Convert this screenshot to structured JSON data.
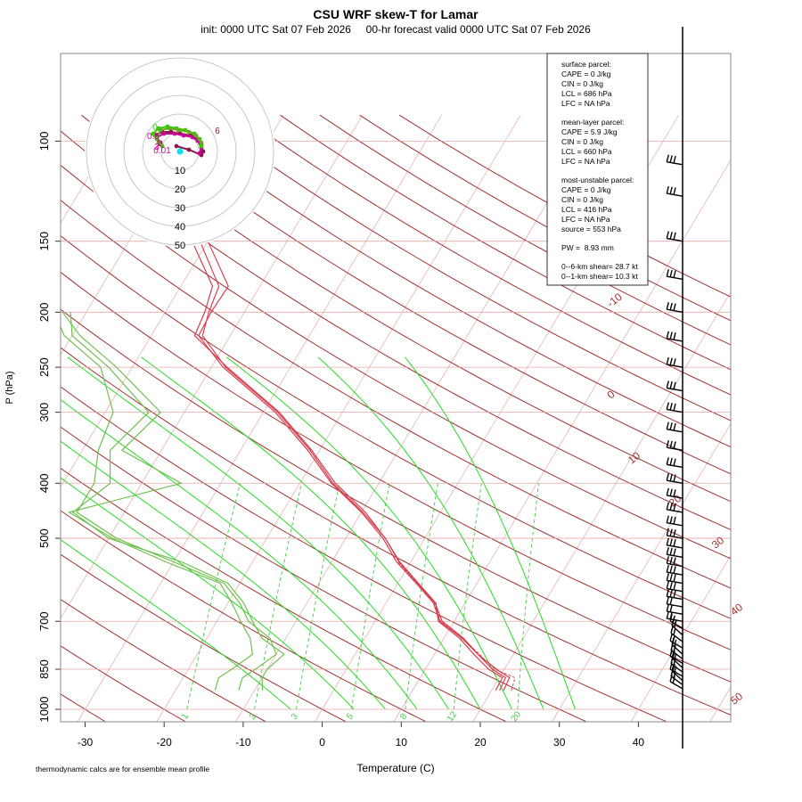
{
  "chart_data": {
    "type": "skew-t",
    "title": "CSU WRF skew-T for Lamar",
    "subtitle": "init: 0000 UTC Sat 07 Feb 2026     00-hr forecast valid 0000 UTC Sat 07 Feb 2026",
    "xlabel": "Temperature (C)",
    "ylabel": "P (hPa)",
    "footnote": "thermodynamic calcs are for ensemble mean profile",
    "x_ticks": [
      -30,
      -20,
      -10,
      0,
      10,
      20,
      30,
      40
    ],
    "p_ticks": [
      100,
      150,
      200,
      250,
      300,
      400,
      500,
      700,
      850,
      1000
    ],
    "isotherm_labels": [
      "-10",
      "0",
      "10",
      "20",
      "30",
      "40",
      "50"
    ],
    "mixing_ratio_labels": [
      "1",
      "2",
      "3",
      "5",
      "8",
      "12",
      "20"
    ],
    "hodograph_rings": [
      "10",
      "20",
      "30",
      "40",
      "50"
    ],
    "hodograph_markers": [
      "0",
      "0.5",
      "1",
      "3",
      "6",
      "0.01"
    ],
    "temperature_members": [
      {
        "points": [
          [
            926,
            21.0
          ],
          [
            880,
            20.8
          ],
          [
            850,
            18.5
          ],
          [
            800,
            15.5
          ],
          [
            750,
            12.5
          ],
          [
            700,
            8.5
          ],
          [
            650,
            6.2
          ],
          [
            600,
            2.5
          ],
          [
            550,
            -1.5
          ],
          [
            500,
            -5.0
          ],
          [
            450,
            -9.5
          ],
          [
            400,
            -15.5
          ],
          [
            350,
            -21.0
          ],
          [
            300,
            -28.0
          ],
          [
            250,
            -38.0
          ],
          [
            220,
            -44.5
          ],
          [
            200,
            -45.0
          ],
          [
            180,
            -46.0
          ],
          [
            150,
            -52.0
          ],
          [
            120,
            -54.0
          ],
          [
            110,
            -58.0
          ]
        ]
      },
      {
        "points": [
          [
            926,
            21.5
          ],
          [
            880,
            21.3
          ],
          [
            850,
            19.0
          ],
          [
            800,
            15.5
          ],
          [
            750,
            12.3
          ],
          [
            700,
            8.2
          ],
          [
            650,
            6.0
          ],
          [
            600,
            2.3
          ],
          [
            550,
            -1.8
          ],
          [
            500,
            -5.3
          ],
          [
            450,
            -10.0
          ],
          [
            400,
            -16.0
          ],
          [
            350,
            -21.5
          ],
          [
            300,
            -28.5
          ],
          [
            250,
            -38.5
          ],
          [
            220,
            -44.0
          ],
          [
            200,
            -44.2
          ],
          [
            180,
            -44.0
          ],
          [
            150,
            -50.0
          ],
          [
            120,
            -53.5
          ],
          [
            110,
            -58.0
          ]
        ]
      },
      {
        "points": [
          [
            926,
            20.5
          ],
          [
            880,
            20.4
          ],
          [
            850,
            18.0
          ],
          [
            800,
            15.0
          ],
          [
            750,
            12.0
          ],
          [
            700,
            8.0
          ],
          [
            650,
            6.3
          ],
          [
            600,
            2.6
          ],
          [
            550,
            -1.4
          ],
          [
            500,
            -5.0
          ],
          [
            450,
            -9.8
          ],
          [
            400,
            -15.8
          ],
          [
            350,
            -21.2
          ],
          [
            300,
            -28.2
          ],
          [
            250,
            -38.2
          ],
          [
            220,
            -43.5
          ],
          [
            200,
            -44.5
          ],
          [
            180,
            -45.2
          ],
          [
            150,
            -51.0
          ],
          [
            120,
            -54.2
          ],
          [
            110,
            -58.0
          ]
        ]
      }
    ],
    "temperature_mean": {
      "points": [
        [
          926,
          22.5
        ],
        [
          880,
          22.0
        ],
        [
          850,
          18.8
        ],
        [
          800,
          15.7
        ],
        [
          750,
          12.4
        ],
        [
          700,
          8.3
        ],
        [
          650,
          6.1
        ],
        [
          600,
          2.4
        ],
        [
          550,
          -1.6
        ]
      ]
    },
    "dewpoint_members": [
      {
        "points": [
          [
            926,
            -12.0
          ],
          [
            880,
            -12.5
          ],
          [
            850,
            -11.5
          ],
          [
            800,
            -10.0
          ],
          [
            750,
            -12.0
          ],
          [
            700,
            -16.0
          ],
          [
            650,
            -18.5
          ],
          [
            600,
            -22.0
          ],
          [
            550,
            -30.0
          ],
          [
            500,
            -39.0
          ],
          [
            450,
            -46.0
          ],
          [
            400,
            -46.0
          ],
          [
            350,
            -48.0
          ],
          [
            300,
            -49.0
          ],
          [
            250,
            -54.0
          ],
          [
            220,
            -61.0
          ],
          [
            200,
            -64.0
          ]
        ]
      },
      {
        "points": [
          [
            926,
            -15.0
          ],
          [
            880,
            -15.5
          ],
          [
            850,
            -14.5
          ],
          [
            800,
            -13.0
          ],
          [
            750,
            -14.5
          ],
          [
            700,
            -17.0
          ],
          [
            650,
            -19.5
          ],
          [
            600,
            -22.5
          ],
          [
            550,
            -31.0
          ],
          [
            500,
            -39.5
          ],
          [
            450,
            -47.0
          ],
          [
            400,
            -35.0
          ],
          [
            350,
            -45.0
          ],
          [
            300,
            -43.0
          ],
          [
            250,
            -52.0
          ],
          [
            220,
            -59.0
          ],
          [
            200,
            -63.0
          ]
        ]
      },
      {
        "points": [
          [
            926,
            -9.0
          ],
          [
            880,
            -10.0
          ],
          [
            850,
            -10.0
          ],
          [
            800,
            -9.0
          ],
          [
            750,
            -13.0
          ],
          [
            700,
            -15.5
          ],
          [
            650,
            -18.0
          ],
          [
            600,
            -21.5
          ],
          [
            550,
            -29.0
          ],
          [
            500,
            -40.0
          ],
          [
            450,
            -46.5
          ],
          [
            400,
            -44.0
          ],
          [
            350,
            -46.5
          ],
          [
            300,
            -44.5
          ],
          [
            250,
            -53.0
          ],
          [
            220,
            -60.0
          ],
          [
            200,
            -62.0
          ]
        ]
      }
    ],
    "wind_barbs_pressure": [
      920,
      905,
      890,
      875,
      860,
      845,
      830,
      815,
      800,
      780,
      760,
      740,
      720,
      700,
      680,
      660,
      640,
      620,
      600,
      580,
      560,
      540,
      520,
      500,
      475,
      450,
      425,
      400,
      375,
      350,
      325,
      300,
      275,
      250,
      225,
      200,
      175,
      150,
      125,
      110
    ]
  },
  "stats_box": {
    "surface_header": "surface parcel:",
    "surface_cape": "CAPE = 0 J/kg",
    "surface_cin": "CIN = 0 J/kg",
    "surface_lcl": "LCL = 686 hPa",
    "surface_lfc": "LFC = NA hPa",
    "mean_header": "mean-layer parcel:",
    "mean_cape": "CAPE = 5.9 J/kg",
    "mean_cin": "CIN = 0 J/kg",
    "mean_lcl": "LCL = 660 hPa",
    "mean_lfc": "LFC = NA hPa",
    "mu_header": "most-unstable parcel:",
    "mu_cape": "CAPE = 0 J/kg",
    "mu_cin": "CIN = 0 J/kg",
    "mu_lcl": "LCL = 416 hPa",
    "mu_lfc": "LFC = NA hPa",
    "mu_source": "source = 553 hPa",
    "pw": "PW =  8.93 mm",
    "shear_6km": "0--6-km shear= 28.7 kt",
    "shear_1km": "0--1-km shear= 10.3 kt"
  },
  "colors": {
    "isotherm": "#e8b4b4",
    "dry_adiabat": "#a03030",
    "moist_adiabat": "#22dd22",
    "mixing_ratio": "#44cc44",
    "temperature": "#d84050",
    "dewpoint": "#70c050",
    "isobar": "#e8a8a8"
  }
}
